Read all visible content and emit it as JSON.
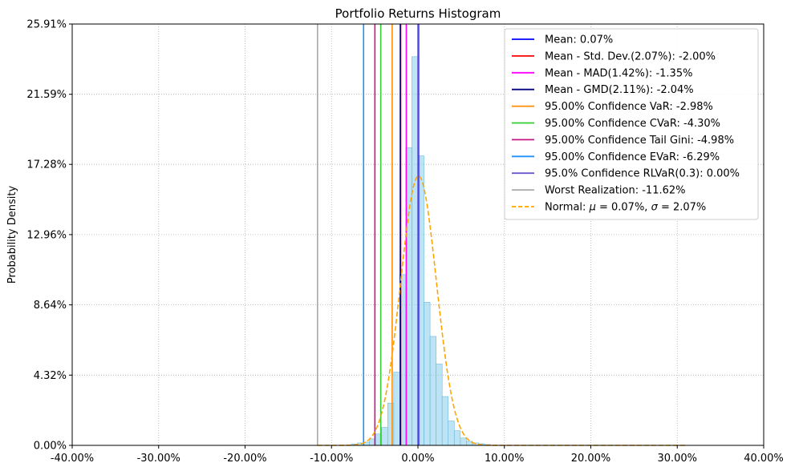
{
  "chart_data": {
    "type": "histogram",
    "title": "Portfolio Returns Histogram",
    "xlabel": "",
    "ylabel": "Probability Density",
    "xlim": [
      -40.0,
      40.0
    ],
    "ylim": [
      0.0,
      25.91
    ],
    "xticks": [
      -40,
      -30,
      -20,
      -10,
      0,
      10,
      20,
      30,
      40
    ],
    "xtick_labels": [
      "-40.00%",
      "-30.00%",
      "-20.00%",
      "-10.00%",
      "0.00%",
      "10.00%",
      "20.00%",
      "30.00%",
      "40.00%"
    ],
    "yticks": [
      0.0,
      4.32,
      8.64,
      12.96,
      17.28,
      21.59,
      25.91
    ],
    "ytick_labels": [
      "0.00%",
      "4.32%",
      "8.64%",
      "12.96%",
      "17.28%",
      "21.59%",
      "25.91%"
    ],
    "grid": true,
    "legend_position": "top-right",
    "histogram": {
      "color": "#87ceeb",
      "edge_color": "#6fb8dd",
      "bin_width": 0.7,
      "bins": [
        {
          "x0": -7.7,
          "value": 0.08
        },
        {
          "x0": -7.0,
          "value": 0.15
        },
        {
          "x0": -6.3,
          "value": 0.2
        },
        {
          "x0": -5.6,
          "value": 0.4
        },
        {
          "x0": -4.9,
          "value": 0.7
        },
        {
          "x0": -4.2,
          "value": 1.1
        },
        {
          "x0": -3.5,
          "value": 2.6
        },
        {
          "x0": -2.8,
          "value": 4.5
        },
        {
          "x0": -2.1,
          "value": 10.5
        },
        {
          "x0": -1.4,
          "value": 18.3
        },
        {
          "x0": -0.7,
          "value": 23.9
        },
        {
          "x0": 0.0,
          "value": 17.8
        },
        {
          "x0": 0.7,
          "value": 8.8
        },
        {
          "x0": 1.4,
          "value": 6.7
        },
        {
          "x0": 2.1,
          "value": 5.0
        },
        {
          "x0": 2.8,
          "value": 3.0
        },
        {
          "x0": 3.5,
          "value": 1.5
        },
        {
          "x0": 4.2,
          "value": 0.9
        },
        {
          "x0": 4.9,
          "value": 0.45
        },
        {
          "x0": 5.6,
          "value": 0.25
        },
        {
          "x0": 6.3,
          "value": 0.15
        },
        {
          "x0": 7.0,
          "value": 0.1
        },
        {
          "x0": 7.7,
          "value": 0.05
        }
      ]
    },
    "vlines": [
      {
        "label": "Mean: 0.07%",
        "x": 0.07,
        "color": "#0000ff",
        "dash": false
      },
      {
        "label": "Mean - Std. Dev.(2.07%): -2.00%",
        "x": -2.0,
        "color": "#ff0000",
        "dash": false
      },
      {
        "label": "Mean - MAD(1.42%): -1.35%",
        "x": -1.35,
        "color": "#ff00ff",
        "dash": false
      },
      {
        "label": "Mean - GMD(2.11%): -2.04%",
        "x": -2.04,
        "color": "#000080",
        "dash": false
      },
      {
        "label": "95.00% Confidence VaR: -2.98%",
        "x": -2.98,
        "color": "#ff8c00",
        "dash": false
      },
      {
        "label": "95.00% Confidence CVaR: -4.30%",
        "x": -4.3,
        "color": "#32cd32",
        "dash": false
      },
      {
        "label": "95.00% Confidence Tail Gini: -4.98%",
        "x": -4.98,
        "color": "#c71585",
        "dash": false
      },
      {
        "label": "95.00% Confidence EVaR: -6.29%",
        "x": -6.29,
        "color": "#1e90ff",
        "dash": false
      },
      {
        "label": "95.0% Confidence RLVaR(0.3): 0.00%",
        "x": 0.0,
        "color": "#6a5acd",
        "dash": false
      },
      {
        "label": "Worst Realization: -11.62%",
        "x": -11.62,
        "color": "#a9a9a9",
        "dash": false
      }
    ],
    "normal_curve": {
      "label": "Normal: μ = 0.07%, σ = 2.07%",
      "label_prefix": "Normal: ",
      "mu_symbol": "μ",
      "mu_text": " = 0.07%, ",
      "sigma_symbol": "σ",
      "sigma_text": " = 2.07%",
      "mu": 0.07,
      "sigma": 2.07,
      "x_range": [
        -11.62,
        31.0
      ],
      "color": "#ffa500",
      "dash": true
    }
  }
}
